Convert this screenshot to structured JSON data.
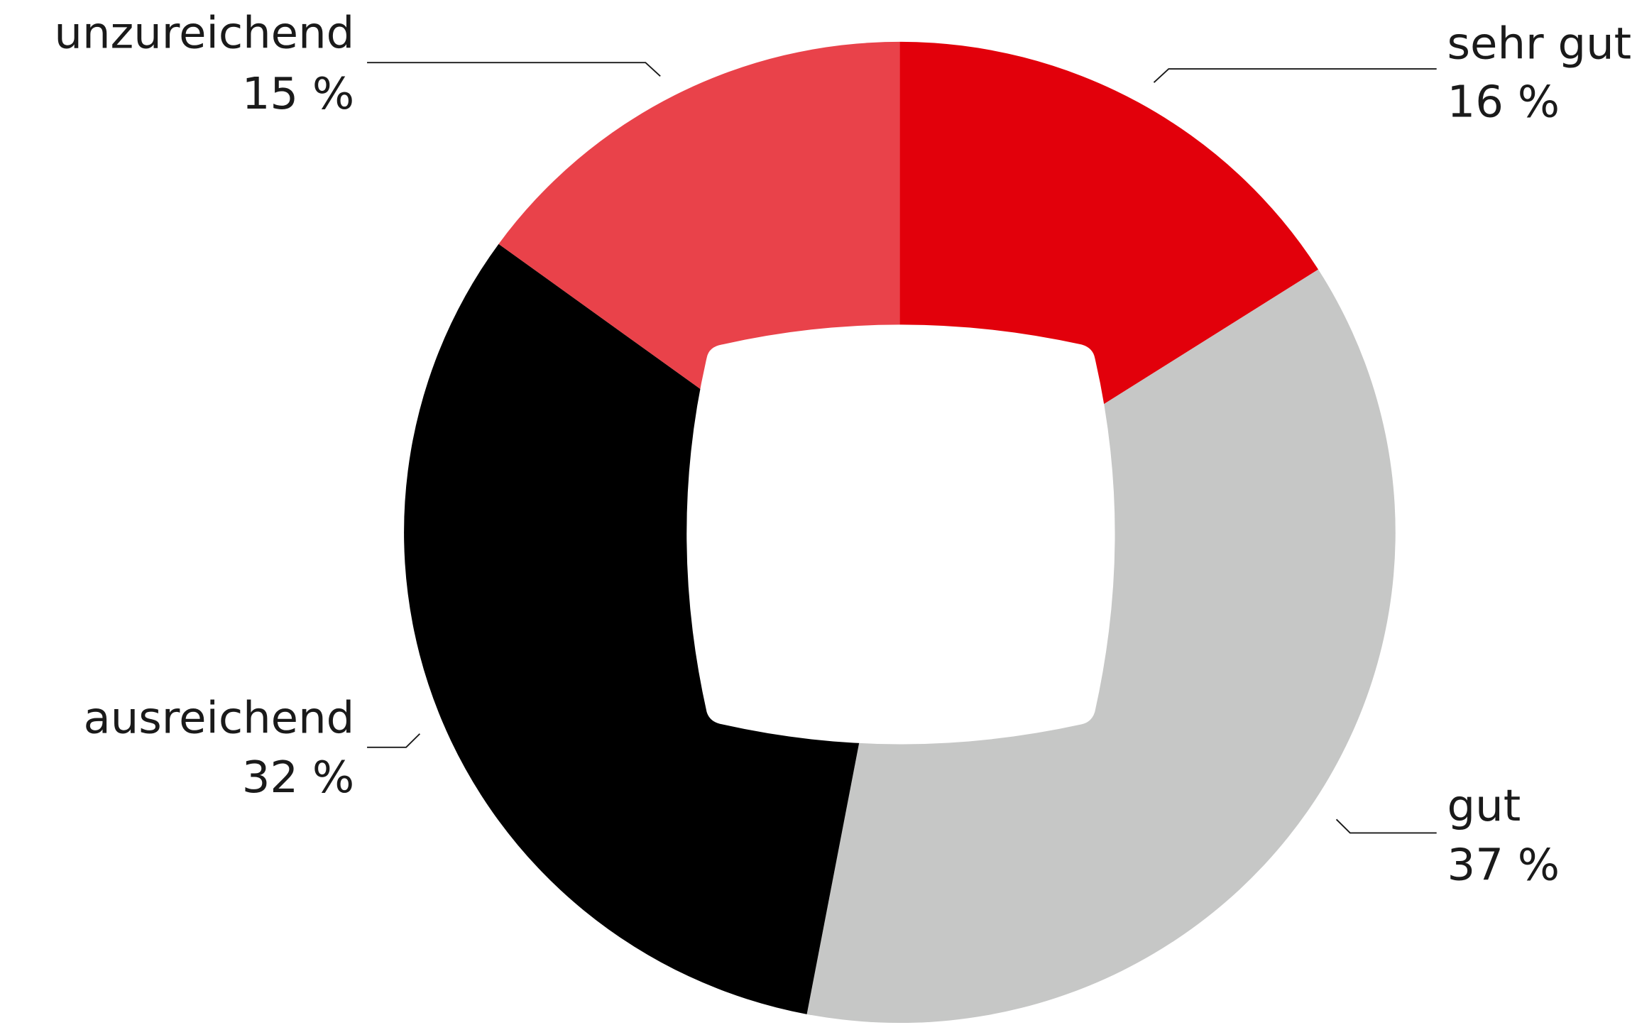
{
  "chart_data": {
    "type": "pie",
    "categories": [
      "sehr gut",
      "gut",
      "ausreichend",
      "unzureichend"
    ],
    "values": [
      16,
      37,
      32,
      15
    ],
    "value_labels": [
      "16 %",
      "37 %",
      "32 %",
      "15 %"
    ],
    "colors": [
      "#e2000b",
      "#c6c7c6",
      "#000000",
      "#e9424a"
    ]
  }
}
